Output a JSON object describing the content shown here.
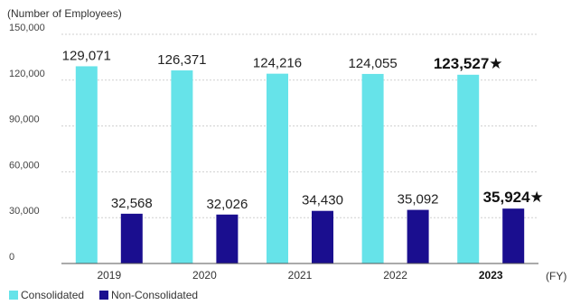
{
  "chart_data": {
    "type": "bar",
    "ylabel": "(Number of Employees)",
    "xunit": "(FY)",
    "categories": [
      "2019",
      "2020",
      "2021",
      "2022",
      "2023"
    ],
    "highlight_category": "2023",
    "marker": "★",
    "ylim": [
      0,
      150000
    ],
    "yticks": [
      "150,000",
      "120,000",
      "90,000",
      "60,000",
      "30,000",
      "0"
    ],
    "ytick_values": [
      150000,
      120000,
      90000,
      60000,
      30000,
      0
    ],
    "grid": true,
    "legend_position": "bottom-left",
    "series": [
      {
        "name": "Consolidated",
        "color": "#66E3E9",
        "values": [
          129071,
          126371,
          124216,
          124055,
          123527
        ],
        "labels": [
          "129,071",
          "126,371",
          "124,216",
          "124,055",
          "123,527"
        ]
      },
      {
        "name": "Non-Consolidated",
        "color": "#1A0E8F",
        "values": [
          32568,
          32026,
          34430,
          35092,
          35924
        ],
        "labels": [
          "32,568",
          "32,026",
          "34,430",
          "35,092",
          "35,924"
        ]
      }
    ]
  }
}
